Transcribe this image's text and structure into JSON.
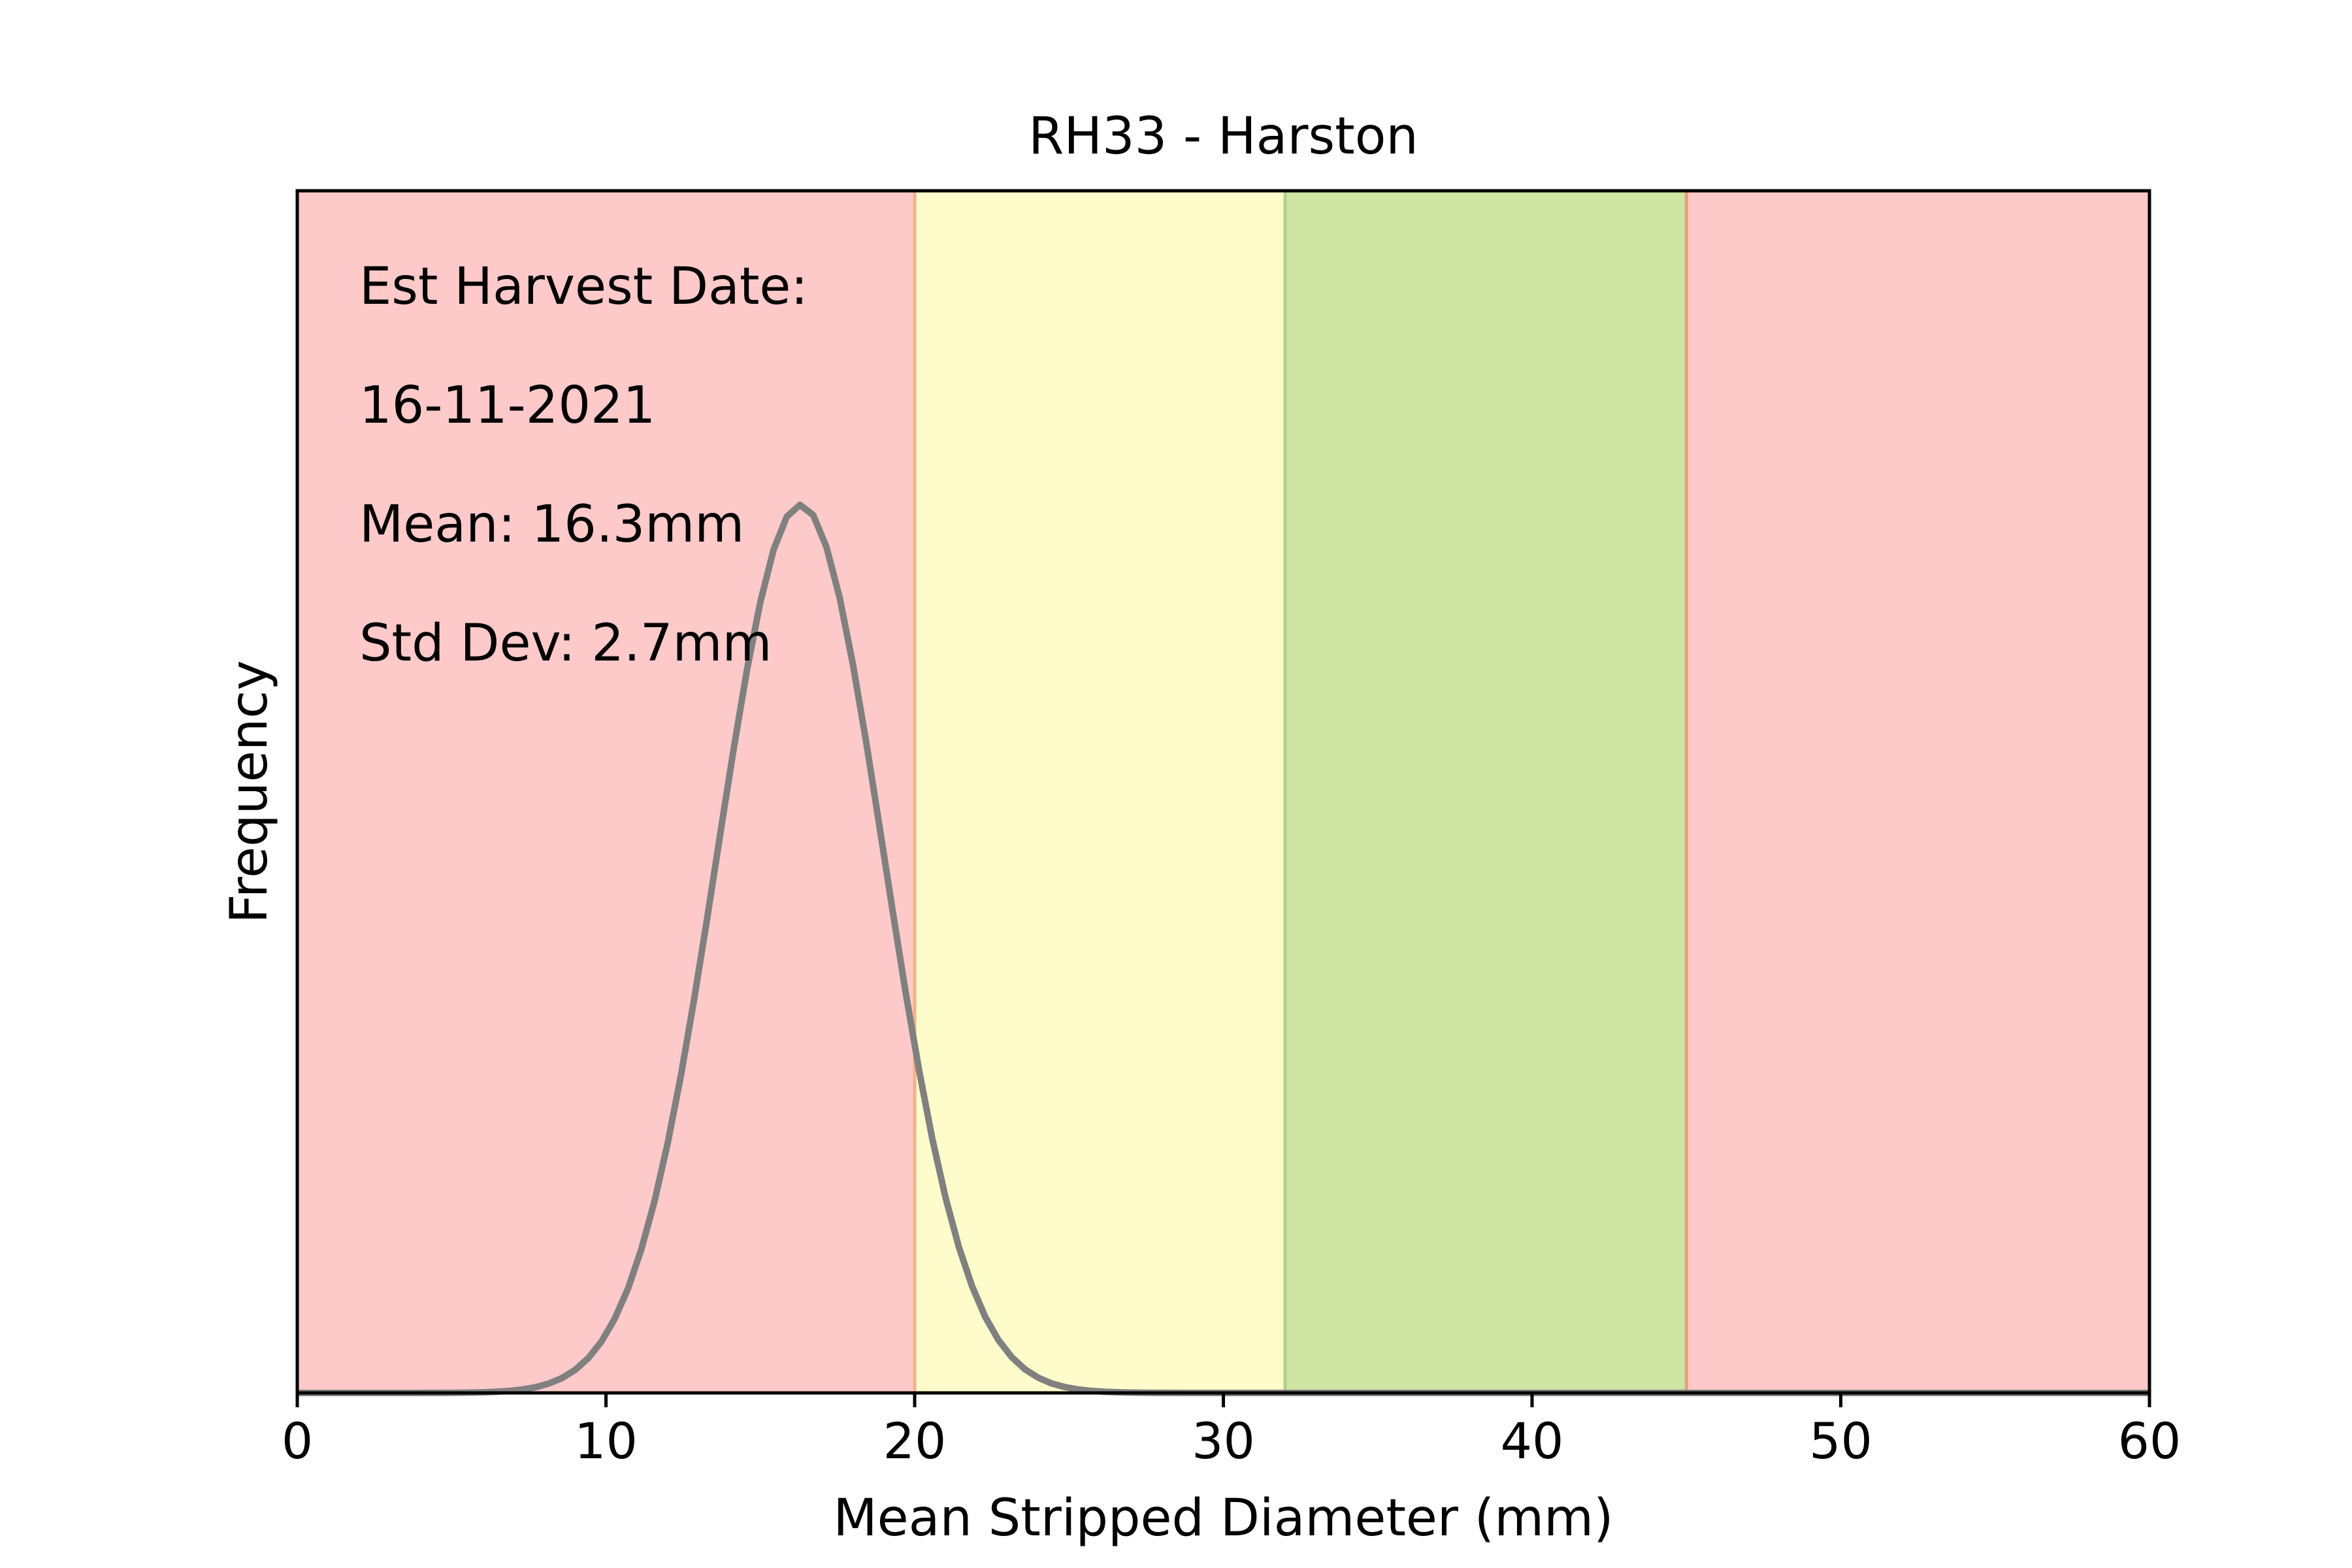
{
  "chart_data": {
    "type": "line",
    "title": "RH33 - Harston",
    "xlabel": "Mean Stripped Diameter (mm)",
    "ylabel": "Frequency",
    "xlim": [
      0,
      60
    ],
    "ylim": [
      0,
      0.2
    ],
    "x_ticks": [
      0,
      10,
      20,
      30,
      40,
      50,
      60
    ],
    "y_ticks_visible": false,
    "grid": false,
    "regions": [
      {
        "from": 0,
        "to": 20,
        "color": "#fdc9c9"
      },
      {
        "from": 20,
        "to": 32,
        "color": "#fefcca"
      },
      {
        "from": 32,
        "to": 45,
        "color": "#cfe5a4"
      },
      {
        "from": 45,
        "to": 60,
        "color": "#fdc9c9"
      }
    ],
    "boundaries": [
      {
        "x": 20,
        "color": "#f5b08a"
      },
      {
        "x": 32,
        "color": "#b5d08c"
      },
      {
        "x": 45,
        "color": "#e8a070"
      }
    ],
    "series": [
      {
        "distribution": "normal",
        "mean": 16.3,
        "std": 2.7,
        "color": "#808080",
        "x_range": [
          0,
          60
        ]
      }
    ],
    "annotations": [
      "Est Harvest Date:",
      "16-11-2021",
      "Mean: 16.3mm",
      "Std Dev: 2.7mm"
    ]
  }
}
